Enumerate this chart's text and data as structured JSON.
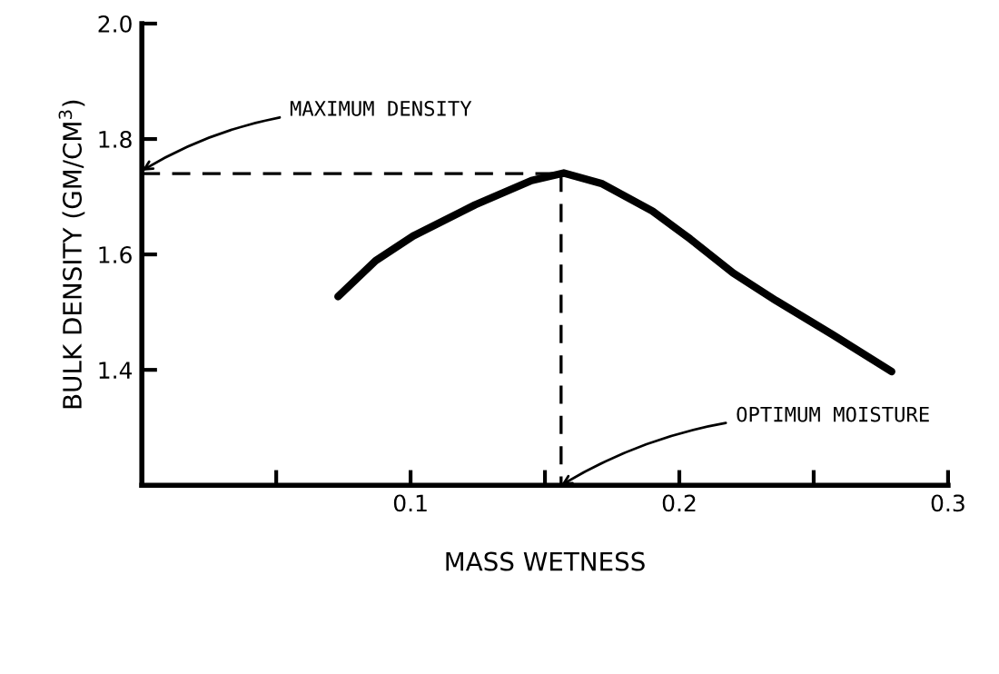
{
  "chart_data": {
    "type": "line",
    "xlabel": "MASS WETNESS",
    "ylabel": "BULK DENSITY (GM/CM$^{3}$)",
    "xlim": [
      0,
      0.3
    ],
    "ylim": [
      1.2,
      2.0
    ],
    "xticks": [
      {
        "value": 0.05,
        "label": null
      },
      0.1,
      {
        "value": 0.15,
        "label": null
      },
      0.2,
      {
        "value": 0.25,
        "label": null
      },
      0.3
    ],
    "yticks": [
      1.4,
      1.6,
      1.8,
      {
        "value": 2.0,
        "label": "2.0"
      }
    ],
    "grid": false,
    "legend": false,
    "series": [
      {
        "color": "#000000",
        "line_style": "solid",
        "x": [
          0.073,
          0.087,
          0.101,
          0.124,
          0.145,
          0.157,
          0.171,
          0.19,
          0.204,
          0.22,
          0.236,
          0.257,
          0.279
        ],
        "values": [
          1.527,
          1.589,
          1.632,
          1.686,
          1.728,
          1.741,
          1.723,
          1.675,
          1.627,
          1.568,
          1.52,
          1.461,
          1.397
        ]
      },
      {
        "color": "#000000",
        "line_style": "dashed",
        "x": [
          0,
          0.156
        ],
        "values": [
          1.74,
          1.74
        ]
      },
      {
        "color": "#000000",
        "line_style": "dashed",
        "x": [
          0.156,
          0.156
        ],
        "values": [
          1.74,
          1.2
        ]
      }
    ],
    "annotations": [
      {
        "text": "MAXIMUM DENSITY",
        "x": 0,
        "y": 1.745
      },
      {
        "text": "OPTIMUM MOISTURE",
        "x": 0.156,
        "y": 1.2
      }
    ]
  }
}
